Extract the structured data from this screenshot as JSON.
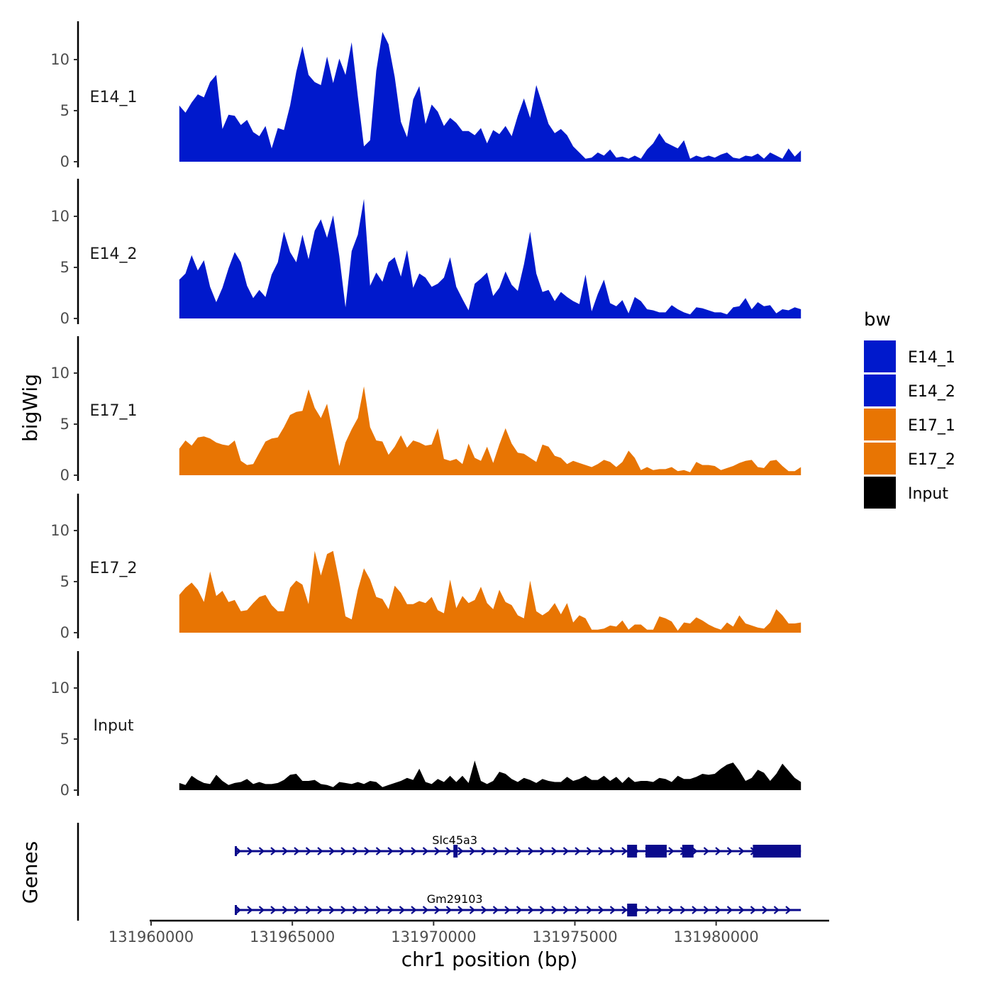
{
  "chart_data": {
    "type": "area",
    "title": "",
    "ylabel": "bigWig",
    "xlabel": "chr1 position (bp)",
    "x_range": [
      131961000,
      131983000
    ],
    "xlim": [
      131960000,
      131984000
    ],
    "ylim": [
      0,
      13.5
    ],
    "y_ticks": [
      0,
      5,
      10
    ],
    "x_ticks": [
      131960000,
      131965000,
      131970000,
      131975000,
      131980000
    ],
    "x_tick_labels": [
      "131960000",
      "131965000",
      "131970000",
      "131975000",
      "131980000"
    ],
    "legend": {
      "title": "bw",
      "position": "right",
      "items": [
        {
          "label": "E14_1",
          "color": "#0019cc"
        },
        {
          "label": "E14_2",
          "color": "#0019cc"
        },
        {
          "label": "E17_1",
          "color": "#e87503"
        },
        {
          "label": "E17_2",
          "color": "#e87503"
        },
        {
          "label": "Input",
          "color": "#000000"
        }
      ]
    },
    "series": [
      {
        "name": "E14_1",
        "color": "#0019cc",
        "values": [
          5.5,
          4.8,
          5.8,
          6.6,
          6.3,
          7.8,
          8.5,
          3.2,
          4.6,
          4.5,
          3.6,
          4.1,
          2.9,
          2.5,
          3.5,
          1.3,
          3.3,
          3.1,
          5.5,
          8.8,
          11.3,
          8.5,
          7.8,
          7.5,
          10.3,
          7.7,
          10.1,
          8.5,
          11.7,
          6.4,
          1.5,
          2.1,
          8.9,
          12.7,
          11.5,
          8.3,
          3.9,
          2.4,
          6.1,
          7.4,
          3.7,
          5.6,
          4.9,
          3.5,
          4.3,
          3.8,
          3.0,
          3.0,
          2.6,
          3.3,
          1.8,
          3.1,
          2.7,
          3.5,
          2.5,
          4.5,
          6.2,
          4.3,
          7.5,
          5.6,
          3.7,
          2.8,
          3.2,
          2.6,
          1.5,
          0.9,
          0.3,
          0.4,
          0.9,
          0.6,
          1.2,
          0.4,
          0.5,
          0.3,
          0.6,
          0.3,
          1.2,
          1.8,
          2.8,
          1.9,
          1.6,
          1.3,
          2.1,
          0.3,
          0.6,
          0.4,
          0.6,
          0.4,
          0.7,
          0.9,
          0.4,
          0.3,
          0.6,
          0.5,
          0.8,
          0.3,
          0.9,
          0.6,
          0.3,
          1.3,
          0.5,
          1.1
        ]
      },
      {
        "name": "E14_2",
        "color": "#0019cc",
        "values": [
          3.8,
          4.4,
          6.2,
          4.7,
          5.7,
          3.1,
          1.6,
          3.0,
          4.9,
          6.5,
          5.5,
          3.2,
          2.0,
          2.8,
          2.1,
          4.3,
          5.5,
          8.5,
          6.5,
          5.5,
          8.2,
          5.8,
          8.6,
          9.7,
          7.9,
          10.1,
          6.1,
          1.1,
          6.6,
          8.2,
          11.7,
          3.2,
          4.5,
          3.6,
          5.5,
          6.0,
          4.1,
          6.7,
          3.0,
          4.4,
          4.0,
          3.1,
          3.4,
          4.0,
          6.0,
          3.1,
          1.9,
          0.8,
          3.4,
          3.9,
          4.5,
          2.2,
          3.0,
          4.6,
          3.3,
          2.7,
          5.3,
          8.5,
          4.4,
          2.6,
          2.8,
          1.7,
          2.6,
          2.1,
          1.7,
          1.4,
          4.3,
          0.7,
          2.4,
          3.8,
          1.5,
          1.2,
          1.8,
          0.5,
          2.1,
          1.7,
          0.9,
          0.8,
          0.6,
          0.6,
          1.3,
          0.9,
          0.6,
          0.4,
          1.1,
          1.0,
          0.8,
          0.6,
          0.6,
          0.4,
          1.1,
          1.2,
          2.0,
          0.9,
          1.6,
          1.2,
          1.3,
          0.5,
          0.9,
          0.8,
          1.1,
          0.9
        ]
      },
      {
        "name": "E17_1",
        "color": "#e87503",
        "values": [
          2.6,
          3.4,
          2.9,
          3.7,
          3.8,
          3.6,
          3.2,
          3.0,
          2.9,
          3.4,
          1.4,
          1.0,
          1.1,
          2.2,
          3.3,
          3.6,
          3.7,
          4.7,
          5.9,
          6.2,
          6.3,
          8.4,
          6.6,
          5.6,
          7.0,
          4.0,
          0.9,
          3.2,
          4.5,
          5.6,
          8.7,
          4.7,
          3.4,
          3.3,
          2.0,
          2.8,
          3.9,
          2.7,
          3.4,
          3.2,
          2.9,
          3.0,
          4.6,
          1.6,
          1.4,
          1.6,
          1.1,
          3.1,
          1.7,
          1.4,
          2.8,
          1.2,
          3.0,
          4.6,
          3.1,
          2.2,
          2.1,
          1.7,
          1.3,
          3.0,
          2.8,
          1.9,
          1.7,
          1.1,
          1.4,
          1.2,
          1.0,
          0.8,
          1.1,
          1.5,
          1.3,
          0.8,
          1.3,
          2.4,
          1.7,
          0.5,
          0.8,
          0.5,
          0.6,
          0.6,
          0.8,
          0.4,
          0.5,
          0.3,
          1.3,
          1.0,
          1.0,
          0.9,
          0.5,
          0.7,
          0.9,
          1.2,
          1.4,
          1.5,
          0.8,
          0.7,
          1.4,
          1.5,
          0.9,
          0.4,
          0.4,
          0.8
        ]
      },
      {
        "name": "E17_2",
        "color": "#e87503",
        "values": [
          3.7,
          4.4,
          4.9,
          4.2,
          3.0,
          6.0,
          3.6,
          4.1,
          3.0,
          3.2,
          2.1,
          2.2,
          2.9,
          3.5,
          3.7,
          2.7,
          2.1,
          2.1,
          4.4,
          5.1,
          4.7,
          2.8,
          8.0,
          5.6,
          7.7,
          8.0,
          5.0,
          1.6,
          1.3,
          4.2,
          6.3,
          5.2,
          3.5,
          3.3,
          2.3,
          4.6,
          3.9,
          2.8,
          2.8,
          3.1,
          2.9,
          3.5,
          2.2,
          1.9,
          5.2,
          2.4,
          3.6,
          2.9,
          3.2,
          4.5,
          2.9,
          2.3,
          4.2,
          3.0,
          2.7,
          1.7,
          1.4,
          5.1,
          2.1,
          1.7,
          2.1,
          2.9,
          1.8,
          2.9,
          1.0,
          1.7,
          1.4,
          0.3,
          0.3,
          0.4,
          0.7,
          0.6,
          1.2,
          0.3,
          0.8,
          0.8,
          0.3,
          0.3,
          1.6,
          1.4,
          1.1,
          0.2,
          1.0,
          0.9,
          1.5,
          1.2,
          0.8,
          0.5,
          0.3,
          1.0,
          0.6,
          1.7,
          0.9,
          0.7,
          0.5,
          0.4,
          1.0,
          2.3,
          1.7,
          0.9,
          0.9,
          1.0
        ]
      },
      {
        "name": "Input",
        "color": "#000000",
        "values": [
          0.7,
          0.5,
          1.4,
          1.0,
          0.7,
          0.6,
          1.5,
          0.9,
          0.5,
          0.7,
          0.8,
          1.1,
          0.6,
          0.8,
          0.6,
          0.6,
          0.7,
          1.0,
          1.5,
          1.6,
          0.9,
          0.9,
          1.0,
          0.6,
          0.5,
          0.3,
          0.8,
          0.7,
          0.6,
          0.8,
          0.6,
          0.9,
          0.8,
          0.3,
          0.5,
          0.7,
          0.9,
          1.2,
          1.0,
          2.1,
          0.8,
          0.6,
          1.1,
          0.8,
          1.4,
          0.8,
          1.4,
          0.7,
          2.9,
          0.9,
          0.6,
          0.9,
          1.8,
          1.6,
          1.1,
          0.8,
          1.2,
          1.0,
          0.7,
          1.1,
          0.9,
          0.8,
          0.8,
          1.3,
          0.9,
          1.1,
          1.4,
          1.0,
          1.0,
          1.4,
          0.9,
          1.3,
          0.7,
          1.3,
          0.8,
          0.9,
          0.9,
          0.8,
          1.2,
          1.1,
          0.8,
          1.4,
          1.1,
          1.1,
          1.3,
          1.6,
          1.5,
          1.6,
          2.1,
          2.5,
          2.7,
          1.9,
          0.9,
          1.2,
          2.0,
          1.7,
          0.9,
          1.6,
          2.6,
          1.9,
          1.2,
          0.8
        ]
      }
    ],
    "genes": {
      "title": "Genes",
      "items": [
        {
          "name": "Slc45a3",
          "strand": "+",
          "start": 131963000,
          "end": 131983000,
          "exons": [
            [
              131970700,
              131970850
            ],
            [
              131976850,
              131977200
            ],
            [
              131977500,
              131978250
            ],
            [
              131978800,
              131979200
            ],
            [
              131981300,
              131983000
            ]
          ]
        },
        {
          "name": "Gm29103",
          "strand": "+",
          "start": 131963000,
          "end": 131983000,
          "exons": [
            [
              131976850,
              131977200
            ]
          ]
        }
      ]
    }
  }
}
